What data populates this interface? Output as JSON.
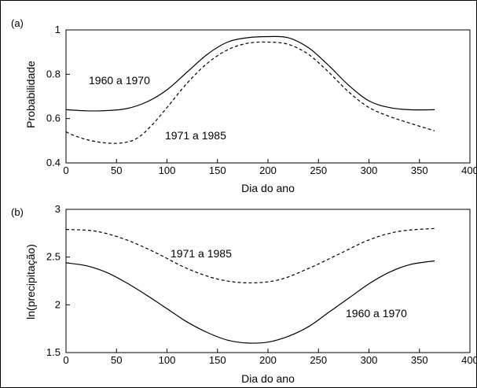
{
  "chart_data": [
    {
      "type": "line",
      "panel_label": "(a)",
      "xlabel": "Dia do ano",
      "ylabel": "Probabilidade",
      "xlim": [
        0,
        400
      ],
      "ylim": [
        0.4,
        1
      ],
      "xticks": [
        "0",
        "50",
        "100",
        "150",
        "200",
        "250",
        "300",
        "350",
        "400"
      ],
      "yticks": [
        "0.4",
        "0.6",
        "0.8",
        "1"
      ],
      "grid": false,
      "series": [
        {
          "name": "1960 a 1970",
          "style": "solid",
          "x": [
            0,
            20,
            40,
            60,
            80,
            100,
            120,
            140,
            160,
            180,
            200,
            220,
            240,
            260,
            280,
            300,
            320,
            340,
            365
          ],
          "y": [
            0.64,
            0.635,
            0.636,
            0.645,
            0.675,
            0.73,
            0.81,
            0.89,
            0.945,
            0.965,
            0.97,
            0.965,
            0.92,
            0.84,
            0.75,
            0.68,
            0.65,
            0.64,
            0.64
          ]
        },
        {
          "name": "1971 a 1985",
          "style": "dashed",
          "x": [
            0,
            10,
            25,
            40,
            55,
            70,
            85,
            100,
            120,
            140,
            160,
            180,
            200,
            220,
            240,
            260,
            280,
            300,
            320,
            340,
            365
          ],
          "y": [
            0.54,
            0.52,
            0.5,
            0.49,
            0.49,
            0.51,
            0.57,
            0.65,
            0.76,
            0.85,
            0.91,
            0.94,
            0.945,
            0.935,
            0.89,
            0.81,
            0.72,
            0.65,
            0.61,
            0.58,
            0.545
          ]
        }
      ]
    },
    {
      "type": "line",
      "panel_label": "(b)",
      "xlabel": "Dia do ano",
      "ylabel": "ln(precipitação)",
      "xlim": [
        0,
        400
      ],
      "ylim": [
        1.5,
        3
      ],
      "xticks": [
        "0",
        "50",
        "100",
        "150",
        "200",
        "250",
        "300",
        "350",
        "400"
      ],
      "yticks": [
        "1.5",
        "2",
        "2.5",
        "3"
      ],
      "grid": false,
      "series": [
        {
          "name": "1971 a 1985",
          "style": "dashed",
          "x": [
            0,
            30,
            60,
            90,
            120,
            150,
            180,
            210,
            240,
            270,
            300,
            330,
            365
          ],
          "y": [
            2.79,
            2.77,
            2.68,
            2.54,
            2.38,
            2.27,
            2.23,
            2.26,
            2.38,
            2.53,
            2.68,
            2.77,
            2.8
          ]
        },
        {
          "name": "1960 a 1970",
          "style": "solid",
          "x": [
            0,
            20,
            40,
            60,
            80,
            100,
            120,
            140,
            160,
            180,
            200,
            220,
            240,
            260,
            280,
            300,
            320,
            340,
            365
          ],
          "y": [
            2.44,
            2.41,
            2.34,
            2.23,
            2.1,
            1.96,
            1.82,
            1.71,
            1.63,
            1.6,
            1.61,
            1.67,
            1.77,
            1.92,
            2.07,
            2.22,
            2.34,
            2.42,
            2.46
          ]
        }
      ]
    }
  ]
}
